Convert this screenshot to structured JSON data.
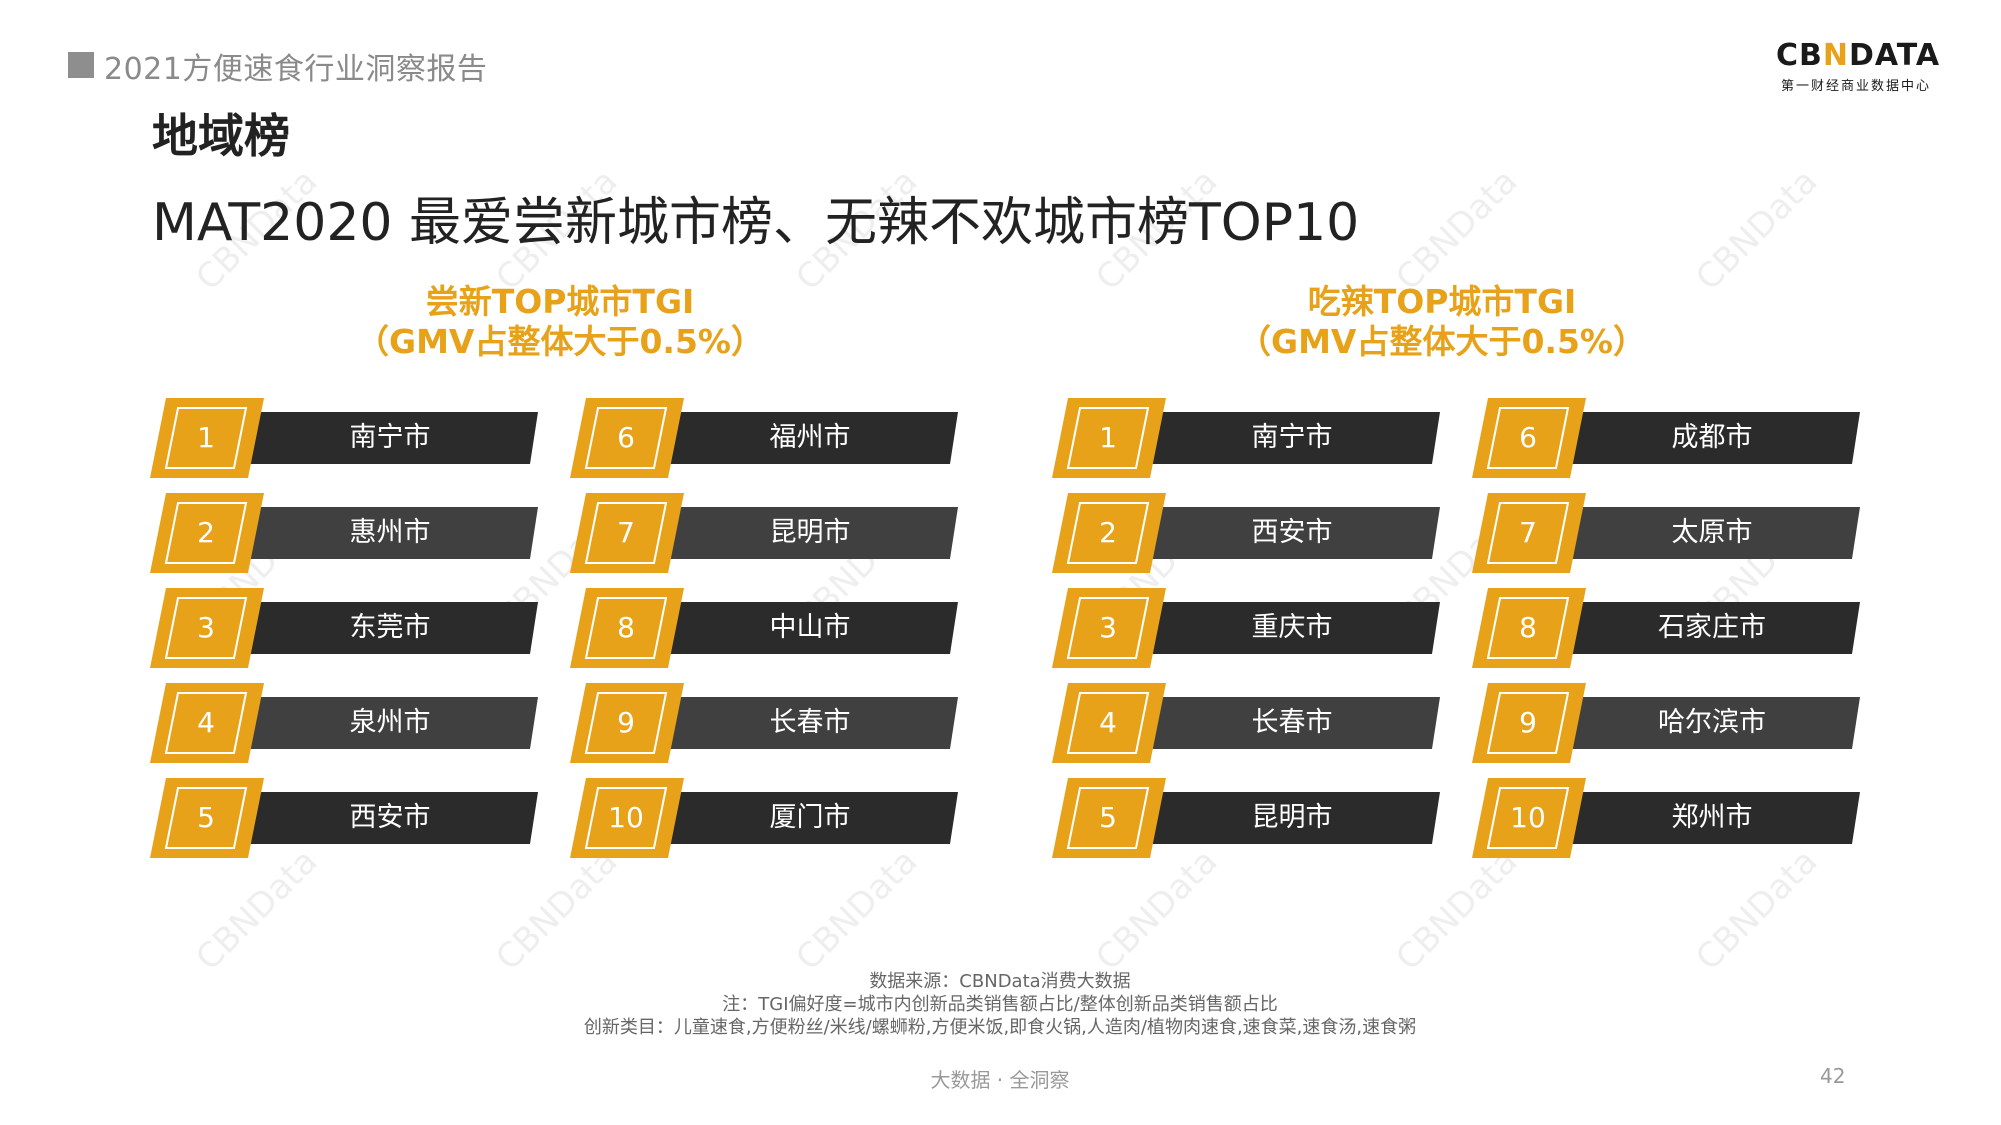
{
  "header": {
    "report_title": "2021方便速食行业洞察报告"
  },
  "logo": {
    "main_before": "CB",
    "main_mark": "N",
    "main_after": "DATA",
    "sub": "第一财经商业数据中心"
  },
  "section_title": "地域榜",
  "main_title": "MAT2020 最爱尝新城市榜、无辣不欢城市榜TOP10",
  "colors": {
    "accent": "#e8a21a",
    "dark_bar": "#2b2b2b",
    "mid_bar": "#404040"
  },
  "lists": [
    {
      "title_line1": "尝新TOP城市TGI",
      "title_line2": "（GMV占整体大于0.5%）",
      "items": [
        {
          "rank": "1",
          "city": "南宁市"
        },
        {
          "rank": "2",
          "city": "惠州市"
        },
        {
          "rank": "3",
          "city": "东莞市"
        },
        {
          "rank": "4",
          "city": "泉州市"
        },
        {
          "rank": "5",
          "city": "西安市"
        },
        {
          "rank": "6",
          "city": "福州市"
        },
        {
          "rank": "7",
          "city": "昆明市"
        },
        {
          "rank": "8",
          "city": "中山市"
        },
        {
          "rank": "9",
          "city": "长春市"
        },
        {
          "rank": "10",
          "city": "厦门市"
        }
      ]
    },
    {
      "title_line1": "吃辣TOP城市TGI",
      "title_line2": "（GMV占整体大于0.5%）",
      "items": [
        {
          "rank": "1",
          "city": "南宁市"
        },
        {
          "rank": "2",
          "city": "西安市"
        },
        {
          "rank": "3",
          "city": "重庆市"
        },
        {
          "rank": "4",
          "city": "长春市"
        },
        {
          "rank": "5",
          "city": "昆明市"
        },
        {
          "rank": "6",
          "city": "成都市"
        },
        {
          "rank": "7",
          "city": "太原市"
        },
        {
          "rank": "8",
          "city": "石家庄市"
        },
        {
          "rank": "9",
          "city": "哈尔滨市"
        },
        {
          "rank": "10",
          "city": "郑州市"
        }
      ]
    }
  ],
  "notes": {
    "source": "数据来源：CBNData消费大数据",
    "tgi": "注：TGI偏好度=城市内创新品类销售额占比/整体创新品类销售额占比",
    "categories": "创新类目：儿童速食,方便粉丝/米线/螺蛳粉,方便米饭,即食火锅,人造肉/植物肉速食,速食菜,速食汤,速食粥"
  },
  "footer": {
    "tagline": "大数据 · 全洞察",
    "page": "42"
  },
  "watermark": "CBNData"
}
